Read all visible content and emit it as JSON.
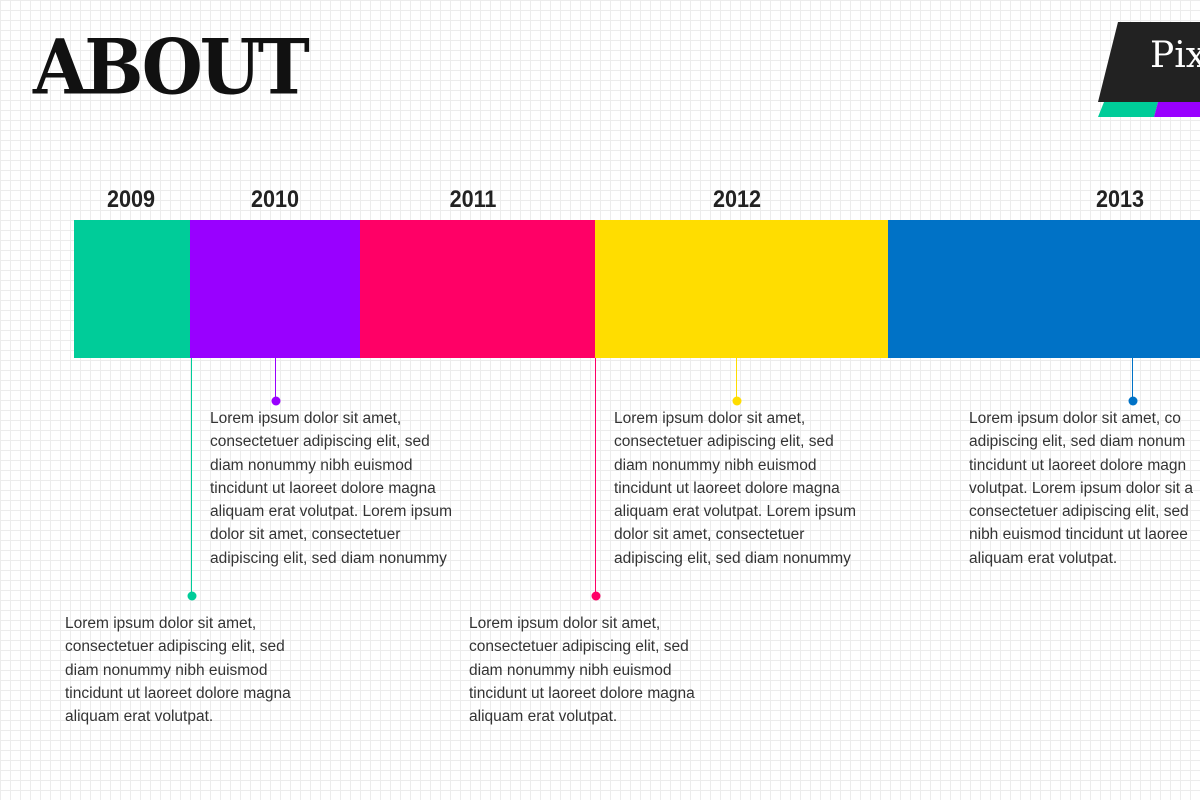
{
  "page": {
    "title": "ABOUT"
  },
  "brand": {
    "text": "Pix",
    "colors": [
      "#222222",
      "#00cc99",
      "#9900ff"
    ]
  },
  "timeline": {
    "years": [
      {
        "label": "2009",
        "color": "#00cc99"
      },
      {
        "label": "2010",
        "color": "#9900ff"
      },
      {
        "label": "2011",
        "color": "#ff0066"
      },
      {
        "label": "2012",
        "color": "#ffdd00"
      },
      {
        "label": "2013",
        "color": "#0072c6"
      }
    ],
    "descriptions": [
      "Lorem ipsum dolor sit amet,\nconsectetuer adipiscing elit, sed\ndiam nonummy nibh euismod\ntincidunt ut laoreet dolore magna\naliquam erat volutpat.",
      "Lorem ipsum dolor sit amet,\nconsectetuer adipiscing elit, sed\ndiam nonummy nibh euismod\ntincidunt ut laoreet dolore magna\naliquam erat volutpat. Lorem ipsum\ndolor sit amet, consectetuer\nadipiscing elit, sed diam nonummy",
      "Lorem ipsum dolor sit amet,\nconsectetuer adipiscing elit, sed\ndiam nonummy nibh euismod\ntincidunt ut laoreet dolore magna\naliquam erat volutpat.",
      "Lorem ipsum dolor sit amet,\nconsectetuer adipiscing elit, sed\ndiam nonummy nibh euismod\ntincidunt ut laoreet dolore magna\naliquam erat volutpat. Lorem ipsum\ndolor sit amet, consectetuer\nadipiscing elit, sed diam nonummy",
      "Lorem ipsum dolor sit amet, co\nadipiscing elit, sed diam nonum\ntincidunt ut laoreet dolore magn\nvolutpat. Lorem ipsum dolor sit a\nconsectetuer adipiscing elit, sed\nnibh euismod tincidunt ut laoree\naliquam erat volutpat."
    ]
  }
}
